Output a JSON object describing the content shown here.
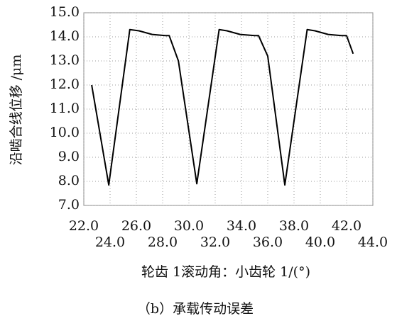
{
  "chart_data": {
    "type": "line",
    "x_label": "轮齿 1滚动角：小齿轮 1/(°)",
    "y_label": "沿啮合线位移 /μm",
    "caption": "（b）承载传动误差",
    "x": [
      22.6,
      23.9,
      25.5,
      26.2,
      27.2,
      28.2,
      28.5,
      29.2,
      30.6,
      32.3,
      32.9,
      33.9,
      35.0,
      35.3,
      36.0,
      37.3,
      39.0,
      39.6,
      40.6,
      41.6,
      42.0,
      42.5
    ],
    "series": [
      {
        "color": "#000000",
        "values": [
          12.0,
          7.85,
          14.3,
          14.25,
          14.1,
          14.05,
          14.05,
          13.0,
          7.9,
          14.3,
          14.25,
          14.1,
          14.05,
          14.05,
          13.2,
          7.85,
          14.3,
          14.25,
          14.1,
          14.05,
          14.05,
          13.3
        ]
      }
    ],
    "xlim": [
      22,
      44
    ],
    "xticks": [
      {
        "value": 22,
        "label": "22.0"
      },
      {
        "value": 24,
        "label": "24.0"
      },
      {
        "value": 26,
        "label": "26.0"
      },
      {
        "value": 28,
        "label": "28.0"
      },
      {
        "value": 30,
        "label": "30.0"
      },
      {
        "value": 32,
        "label": "32.0"
      },
      {
        "value": 34,
        "label": "34.0"
      },
      {
        "value": 36,
        "label": "36.0"
      },
      {
        "value": 38,
        "label": "38.0"
      },
      {
        "value": 40,
        "label": "40.0"
      },
      {
        "value": 42,
        "label": "42.0"
      },
      {
        "value": 44,
        "label": "44.0"
      }
    ],
    "ylim": [
      7,
      15
    ],
    "yticks": [
      {
        "value": 7,
        "label": "7.0"
      },
      {
        "value": 8,
        "label": "8.0"
      },
      {
        "value": 9,
        "label": "9.0"
      },
      {
        "value": 10,
        "label": "10.0"
      },
      {
        "value": 11,
        "label": "11.0"
      },
      {
        "value": 12,
        "label": "12.0"
      },
      {
        "value": 13,
        "label": "13.0"
      },
      {
        "value": 14,
        "label": "14.0"
      },
      {
        "value": 15,
        "label": "15.0"
      }
    ],
    "grid": true
  }
}
